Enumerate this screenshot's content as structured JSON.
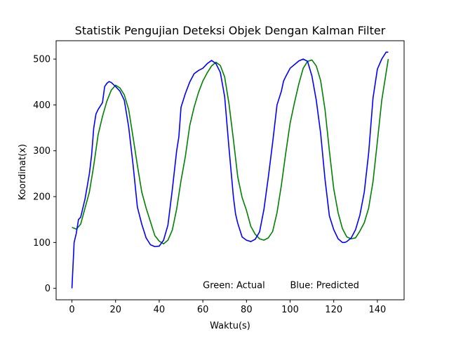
{
  "chart_data": {
    "type": "line",
    "title": "Statistik Pengujian Deteksi Objek Dengan Kalman Filter",
    "xlabel": "Waktu(s)",
    "ylabel": "Koordinat(x)",
    "xlim": [
      -7.25,
      152.25
    ],
    "ylim": [
      -25,
      540
    ],
    "xticks": [
      0,
      20,
      40,
      60,
      80,
      100,
      120,
      140
    ],
    "yticks": [
      0,
      100,
      200,
      300,
      400,
      500
    ],
    "grid": false,
    "annotations": [
      {
        "text": "Green: Actual",
        "x": 60,
        "y": 0
      },
      {
        "text": "Blue: Predicted",
        "x": 100,
        "y": 0
      }
    ],
    "series": [
      {
        "color": "#008000",
        "x": [
          0,
          2,
          4,
          6,
          8,
          10,
          12,
          14,
          16,
          18,
          20,
          22,
          24,
          26,
          28,
          30,
          32,
          34,
          36,
          38,
          40,
          42,
          44,
          46,
          48,
          50,
          52,
          54,
          56,
          58,
          60,
          62,
          64,
          66,
          68,
          70,
          72,
          74,
          76,
          78,
          80,
          82,
          84,
          86,
          88,
          90,
          92,
          94,
          96,
          98,
          100,
          102,
          104,
          106,
          108,
          110,
          112,
          114,
          116,
          118,
          120,
          122,
          124,
          126,
          128,
          130,
          132,
          134,
          136,
          138,
          140,
          142,
          144,
          145
        ],
        "y": [
          133,
          129,
          140,
          175,
          210,
          268,
          335,
          375,
          408,
          432,
          443,
          437,
          422,
          390,
          330,
          268,
          210,
          175,
          145,
          115,
          103,
          97,
          105,
          127,
          173,
          235,
          288,
          355,
          395,
          427,
          452,
          470,
          485,
          493,
          486,
          461,
          402,
          325,
          243,
          198,
          170,
          135,
          118,
          108,
          105,
          110,
          124,
          165,
          225,
          295,
          360,
          405,
          446,
          480,
          495,
          498,
          485,
          453,
          390,
          300,
          217,
          165,
          130,
          112,
          108,
          110,
          125,
          143,
          175,
          233,
          320,
          410,
          470,
          500
        ]
      },
      {
        "color": "#0000ff",
        "x": [
          0,
          1,
          2,
          3,
          4,
          6,
          8,
          9,
          10,
          11,
          12,
          14,
          15,
          16,
          17,
          18,
          20,
          22,
          24,
          26,
          28,
          30,
          32,
          34,
          36,
          38,
          40,
          42,
          44,
          46,
          48,
          49,
          50,
          52,
          54,
          56,
          58,
          60,
          62,
          64,
          66,
          68,
          70,
          72,
          74,
          75,
          76,
          78,
          80,
          82,
          84,
          86,
          88,
          90,
          92,
          94,
          96,
          97,
          98,
          100,
          102,
          104,
          106,
          108,
          110,
          112,
          114,
          116,
          118,
          120,
          122,
          124,
          125,
          126,
          128,
          130,
          132,
          134,
          136,
          138,
          140,
          142,
          144,
          145
        ],
        "y": [
          0,
          100,
          120,
          150,
          155,
          195,
          250,
          290,
          350,
          380,
          390,
          405,
          440,
          447,
          451,
          449,
          440,
          430,
          410,
          352,
          270,
          177,
          140,
          110,
          95,
          91,
          92,
          105,
          138,
          215,
          300,
          330,
          395,
          425,
          450,
          468,
          475,
          480,
          490,
          497,
          490,
          471,
          418,
          305,
          200,
          162,
          142,
          112,
          105,
          102,
          107,
          123,
          172,
          242,
          318,
          400,
          430,
          452,
          462,
          480,
          488,
          496,
          500,
          495,
          463,
          410,
          338,
          238,
          158,
          128,
          108,
          100,
          100,
          102,
          110,
          128,
          160,
          210,
          295,
          415,
          478,
          500,
          515,
          515
        ]
      }
    ]
  }
}
